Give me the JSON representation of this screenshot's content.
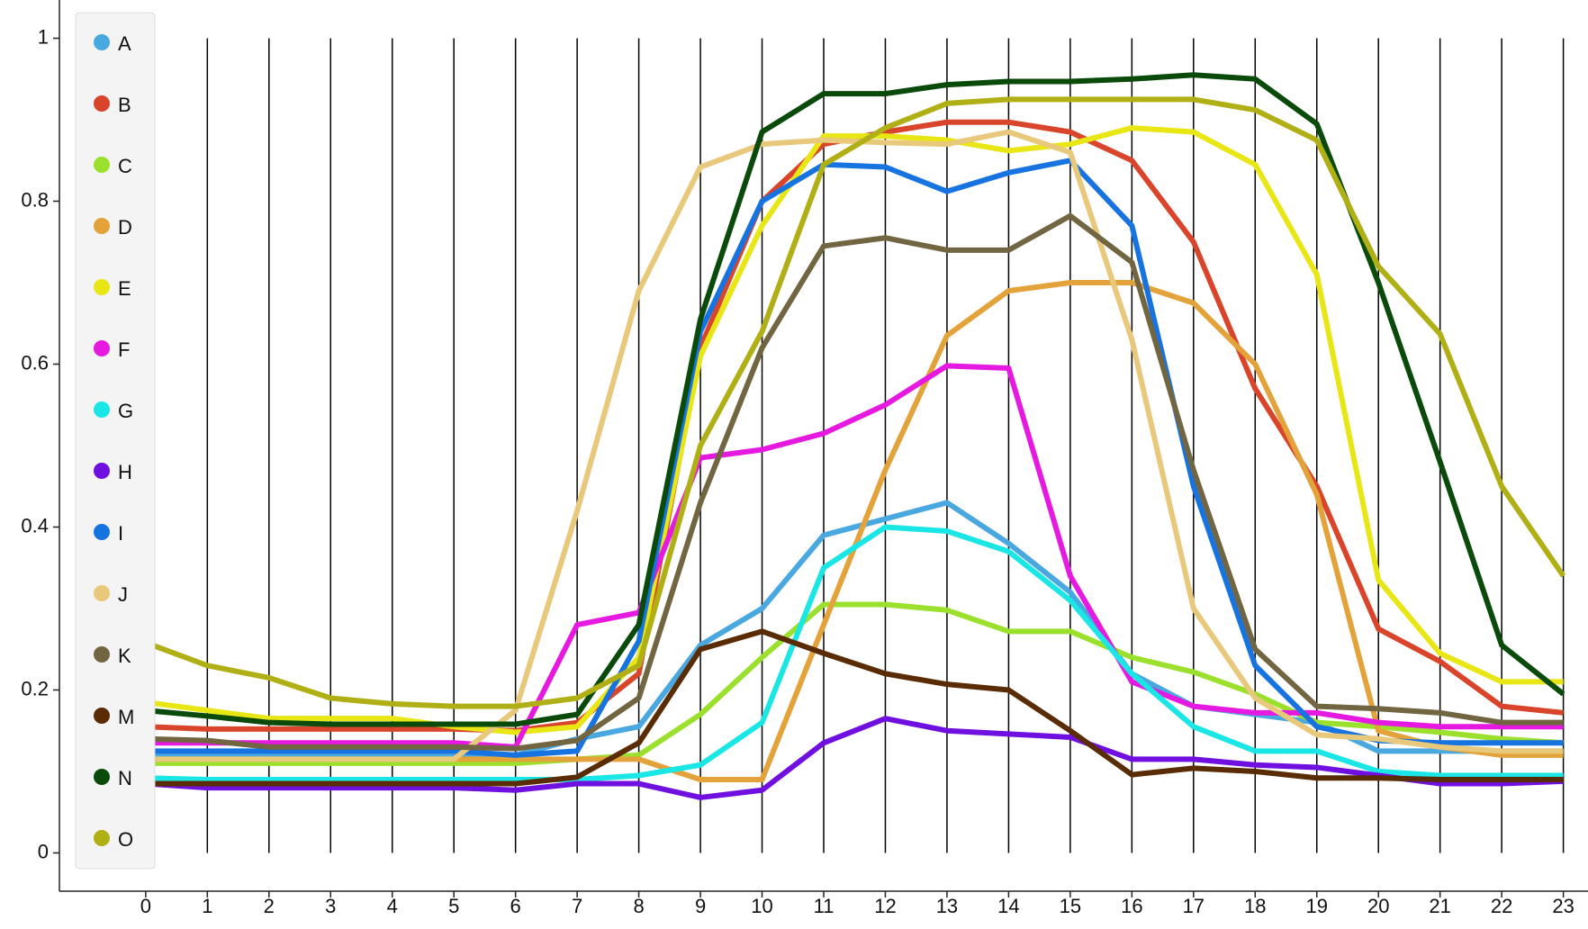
{
  "chart_data": {
    "type": "line",
    "x": [
      0,
      1,
      2,
      3,
      4,
      5,
      6,
      7,
      8,
      9,
      10,
      11,
      12,
      13,
      14,
      15,
      16,
      17,
      18,
      19,
      20,
      21,
      22,
      23
    ],
    "xlim": [
      -1.4,
      23.4
    ],
    "xticks": [
      0,
      1,
      2,
      3,
      4,
      5,
      6,
      7,
      8,
      9,
      10,
      11,
      12,
      13,
      14,
      15,
      16,
      17,
      18,
      19,
      20,
      21,
      22,
      23
    ],
    "ylim": [
      -0.047,
      1.047
    ],
    "yticks": [
      0,
      0.2,
      0.4,
      0.6,
      0.8,
      1
    ],
    "grid": true,
    "legend": "top-left",
    "series": [
      {
        "name": "A",
        "color": "#4aa8e0",
        "values": [
          0.12,
          0.12,
          0.12,
          0.12,
          0.12,
          0.12,
          0.12,
          0.14,
          0.155,
          0.255,
          0.3,
          0.39,
          0.41,
          0.43,
          0.38,
          0.32,
          0.22,
          0.18,
          0.17,
          0.16,
          0.125,
          0.125,
          0.125,
          0.125
        ]
      },
      {
        "name": "B",
        "color": "#d9452b",
        "values": [
          0.155,
          0.152,
          0.152,
          0.152,
          0.152,
          0.152,
          0.15,
          0.16,
          0.22,
          0.62,
          0.8,
          0.87,
          0.885,
          0.897,
          0.897,
          0.885,
          0.85,
          0.75,
          0.57,
          0.45,
          0.275,
          0.235,
          0.18,
          0.172
        ]
      },
      {
        "name": "C",
        "color": "#9be02c",
        "values": [
          0.11,
          0.11,
          0.11,
          0.11,
          0.11,
          0.11,
          0.11,
          0.115,
          0.12,
          0.17,
          0.24,
          0.305,
          0.305,
          0.298,
          0.272,
          0.272,
          0.24,
          0.222,
          0.195,
          0.16,
          0.155,
          0.148,
          0.14,
          0.135
        ]
      },
      {
        "name": "D",
        "color": "#e3a23a",
        "values": [
          0.115,
          0.115,
          0.115,
          0.115,
          0.115,
          0.115,
          0.115,
          0.115,
          0.115,
          0.09,
          0.09,
          0.28,
          0.47,
          0.635,
          0.69,
          0.7,
          0.7,
          0.675,
          0.6,
          0.44,
          0.15,
          0.13,
          0.12,
          0.12
        ]
      },
      {
        "name": "E",
        "color": "#e8e614",
        "values": [
          0.185,
          0.175,
          0.165,
          0.165,
          0.165,
          0.155,
          0.148,
          0.155,
          0.24,
          0.61,
          0.77,
          0.88,
          0.88,
          0.875,
          0.862,
          0.87,
          0.89,
          0.885,
          0.845,
          0.71,
          0.335,
          0.245,
          0.21,
          0.21
        ]
      },
      {
        "name": "F",
        "color": "#e619e0",
        "values": [
          0.135,
          0.135,
          0.135,
          0.135,
          0.135,
          0.135,
          0.13,
          0.28,
          0.295,
          0.485,
          0.495,
          0.515,
          0.55,
          0.598,
          0.595,
          0.34,
          0.21,
          0.18,
          0.172,
          0.172,
          0.16,
          0.155,
          0.155,
          0.155
        ]
      },
      {
        "name": "G",
        "color": "#1ae6e6",
        "values": [
          0.092,
          0.09,
          0.09,
          0.09,
          0.09,
          0.09,
          0.09,
          0.09,
          0.095,
          0.108,
          0.16,
          0.35,
          0.4,
          0.395,
          0.37,
          0.31,
          0.22,
          0.155,
          0.125,
          0.125,
          0.1,
          0.095,
          0.095,
          0.095
        ]
      },
      {
        "name": "H",
        "color": "#7010e0",
        "values": [
          0.085,
          0.08,
          0.08,
          0.08,
          0.08,
          0.08,
          0.077,
          0.085,
          0.085,
          0.068,
          0.077,
          0.135,
          0.165,
          0.15,
          0.146,
          0.142,
          0.115,
          0.115,
          0.108,
          0.105,
          0.095,
          0.085,
          0.085,
          0.088
        ]
      },
      {
        "name": "I",
        "color": "#1673e0",
        "values": [
          0.125,
          0.125,
          0.125,
          0.125,
          0.125,
          0.125,
          0.12,
          0.125,
          0.26,
          0.64,
          0.8,
          0.845,
          0.842,
          0.812,
          0.835,
          0.85,
          0.77,
          0.45,
          0.23,
          0.155,
          0.138,
          0.135,
          0.135,
          0.135
        ]
      },
      {
        "name": "J",
        "color": "#e8c87a",
        "values": [
          0.115,
          0.115,
          0.115,
          0.115,
          0.115,
          0.115,
          0.175,
          0.42,
          0.69,
          0.842,
          0.87,
          0.875,
          0.872,
          0.87,
          0.885,
          0.86,
          0.63,
          0.3,
          0.19,
          0.145,
          0.14,
          0.13,
          0.125,
          0.125
        ]
      },
      {
        "name": "K",
        "color": "#716542",
        "values": [
          0.14,
          0.138,
          0.13,
          0.13,
          0.13,
          0.13,
          0.128,
          0.138,
          0.19,
          0.43,
          0.62,
          0.745,
          0.755,
          0.74,
          0.74,
          0.782,
          0.725,
          0.47,
          0.25,
          0.18,
          0.177,
          0.172,
          0.16,
          0.16
        ]
      },
      {
        "name": "M",
        "color": "#5a2c05",
        "values": [
          0.085,
          0.085,
          0.085,
          0.085,
          0.085,
          0.085,
          0.085,
          0.093,
          0.135,
          0.25,
          0.272,
          0.245,
          0.22,
          0.207,
          0.2,
          0.15,
          0.096,
          0.104,
          0.1,
          0.092,
          0.092,
          0.09,
          0.09,
          0.09
        ]
      },
      {
        "name": "N",
        "color": "#0a4a0a",
        "values": [
          0.175,
          0.168,
          0.16,
          0.158,
          0.158,
          0.158,
          0.158,
          0.17,
          0.28,
          0.655,
          0.885,
          0.932,
          0.932,
          0.943,
          0.947,
          0.947,
          0.95,
          0.955,
          0.95,
          0.895,
          0.7,
          0.48,
          0.255,
          0.195
        ]
      },
      {
        "name": "O",
        "color": "#b0b016",
        "values": [
          0.258,
          0.23,
          0.215,
          0.19,
          0.183,
          0.18,
          0.18,
          0.19,
          0.23,
          0.5,
          0.64,
          0.845,
          0.89,
          0.92,
          0.925,
          0.925,
          0.925,
          0.925,
          0.912,
          0.875,
          0.72,
          0.637,
          0.45,
          0.34
        ]
      }
    ]
  }
}
